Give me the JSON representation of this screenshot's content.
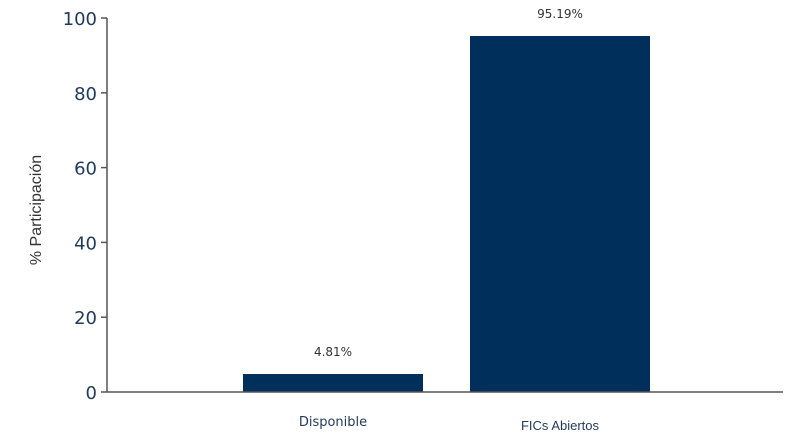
{
  "chart_data": {
    "type": "bar",
    "categories": [
      "Disponible",
      "FICs Abiertos"
    ],
    "values": [
      4.81,
      95.19
    ],
    "data_labels": [
      "4.81%",
      "95.19%"
    ],
    "ylabel": "% Participación",
    "xlabel": "",
    "ylim": [
      0,
      100
    ],
    "yticks": [
      0,
      20,
      40,
      60,
      80,
      100
    ],
    "grid": false,
    "legend": "none",
    "bar_color": "#002f5c",
    "axis_color": "#555555"
  }
}
